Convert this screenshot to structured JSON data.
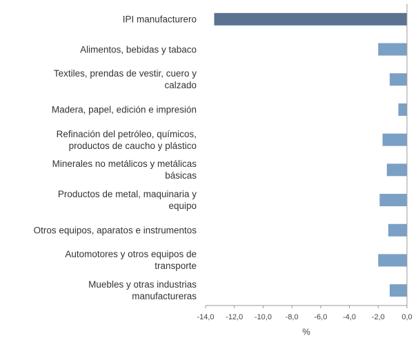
{
  "chart_data": {
    "type": "bar",
    "orientation": "horizontal",
    "categories": [
      "IPI manufacturero",
      "Alimentos, bebidas y tabaco",
      "Textiles, prendas de vestir, cuero y\ncalzado",
      "Madera, papel, edición e impresión",
      "Refinación del petróleo, químicos,\nproductos de caucho y plástico",
      "Minerales no metálicos y metálicas\nbásicas",
      "Productos de metal, maquinaria y\nequipo",
      "Otros equipos, aparatos e instrumentos",
      "Automotores y otros equipos de\ntransporte",
      "Muebles y otras industrias\nmanufactureras"
    ],
    "values": [
      -13.4,
      -2.0,
      -1.2,
      -0.6,
      -1.7,
      -1.4,
      -1.9,
      -1.3,
      -2.0,
      -1.2
    ],
    "colors": [
      "#5b7391",
      "#7ba0c6",
      "#7ba0c6",
      "#7ba0c6",
      "#7ba0c6",
      "#7ba0c6",
      "#7ba0c6",
      "#7ba0c6",
      "#7ba0c6",
      "#7ba0c6"
    ],
    "xlabel": "%",
    "xlim": [
      -14,
      0
    ],
    "xticks": [
      {
        "value": -14,
        "label": "-14,0"
      },
      {
        "value": -12,
        "label": "-12,0"
      },
      {
        "value": -10,
        "label": "-10,0"
      },
      {
        "value": -8,
        "label": "-8,0"
      },
      {
        "value": -6,
        "label": "-6,0"
      },
      {
        "value": -4,
        "label": "-4,0"
      },
      {
        "value": -2,
        "label": "-2,0"
      },
      {
        "value": 0,
        "label": "0,0"
      }
    ]
  }
}
